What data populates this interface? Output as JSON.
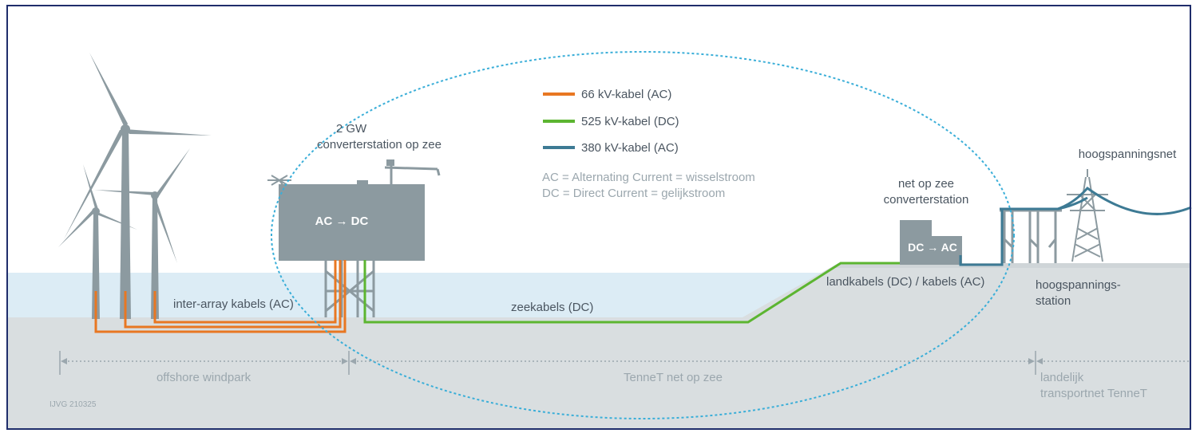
{
  "legend": {
    "items": [
      {
        "label": "66 kV-kabel (AC)",
        "color": "#e87722"
      },
      {
        "label": "525 kV-kabel (DC)",
        "color": "#5cb531"
      },
      {
        "label": "380 kV-kabel (AC)",
        "color": "#3d7a94"
      }
    ],
    "note_ac": "AC = Alternating Current = wisselstroom",
    "note_dc": "DC = Direct Current = gelijkstroom"
  },
  "converter_sea": {
    "title_line1": "2 GW",
    "title_line2": "converterstation op zee",
    "box_label": "AC → DC"
  },
  "converter_land": {
    "title_line1": "net op zee",
    "title_line2": "converterstation",
    "box_label": "DC → AC"
  },
  "grid": {
    "title": "hoogspanningsnet",
    "station_line1": "hoogspannings-",
    "station_line2": "station"
  },
  "cables": {
    "inter_array": "inter-array kabels (AC)",
    "sea": "zeekabels (DC)",
    "land": "landkabels (DC) / kabels (AC)"
  },
  "zones": {
    "offshore": "offshore windpark",
    "tennet_sea": "TenneT net op zee",
    "national_line1": "landelijk",
    "national_line2": "transportnet TenneT"
  },
  "code": "IJVG 210325",
  "colors": {
    "ac66": "#e87722",
    "dc525": "#5cb531",
    "ac380": "#3d7a94",
    "structure": "#8c9aa0",
    "seabed": "#d9dee0",
    "water": "#dcecf5",
    "ellipse": "#3aaed8"
  }
}
